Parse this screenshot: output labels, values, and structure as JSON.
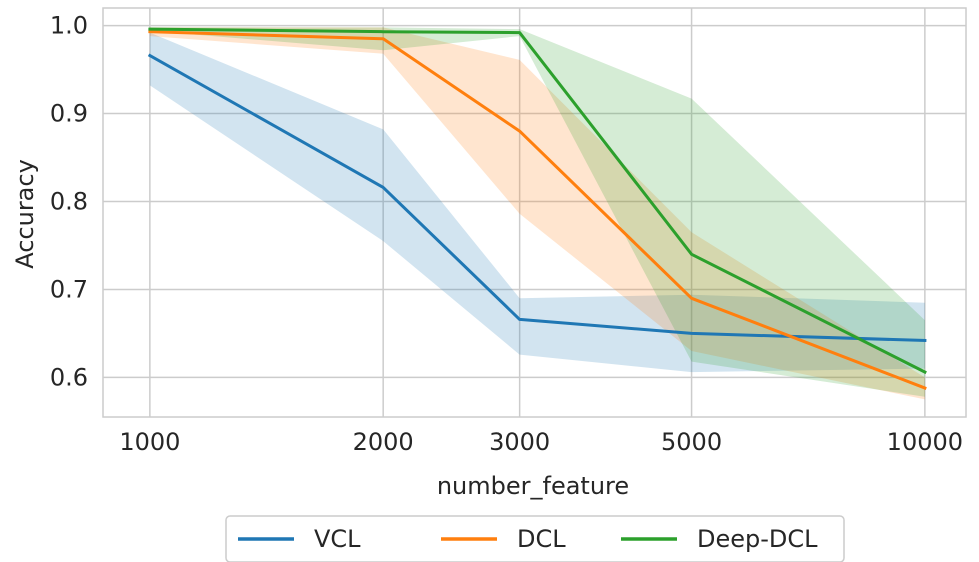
{
  "chart_data": {
    "type": "line",
    "xlabel": "number_feature",
    "ylabel": "Accuracy",
    "x_scale": "log",
    "x": [
      1000,
      2000,
      3000,
      5000,
      10000
    ],
    "x_tick_labels": [
      "1000",
      "2000",
      "3000",
      "5000",
      "10000"
    ],
    "y_ticks": [
      0.6,
      0.7,
      0.8,
      0.9,
      1.0
    ],
    "y_tick_labels": [
      "0.6",
      "0.7",
      "0.8",
      "0.9",
      "1.0"
    ],
    "ylim": [
      0.555,
      1.02
    ],
    "xlim": [
      870,
      11300
    ],
    "grid": true,
    "legend_position": "bottom-center",
    "series": [
      {
        "name": "VCL",
        "color": "#1f77b4",
        "values": [
          0.966,
          0.816,
          0.666,
          0.65,
          0.642
        ],
        "lower": [
          0.932,
          0.755,
          0.626,
          0.606,
          0.61
        ],
        "upper": [
          0.992,
          0.882,
          0.69,
          0.694,
          0.685
        ]
      },
      {
        "name": "DCL",
        "color": "#ff7f0e",
        "values": [
          0.993,
          0.985,
          0.88,
          0.69,
          0.588
        ],
        "lower": [
          0.988,
          0.968,
          0.786,
          0.63,
          0.575
        ],
        "upper": [
          0.998,
          0.998,
          0.961,
          0.765,
          0.6
        ]
      },
      {
        "name": "Deep-DCL",
        "color": "#2ca02c",
        "values": [
          0.996,
          0.993,
          0.992,
          0.74,
          0.606
        ],
        "lower": [
          0.994,
          0.972,
          0.988,
          0.618,
          0.578
        ],
        "upper": [
          0.998,
          0.998,
          0.996,
          0.917,
          0.665
        ]
      }
    ]
  }
}
